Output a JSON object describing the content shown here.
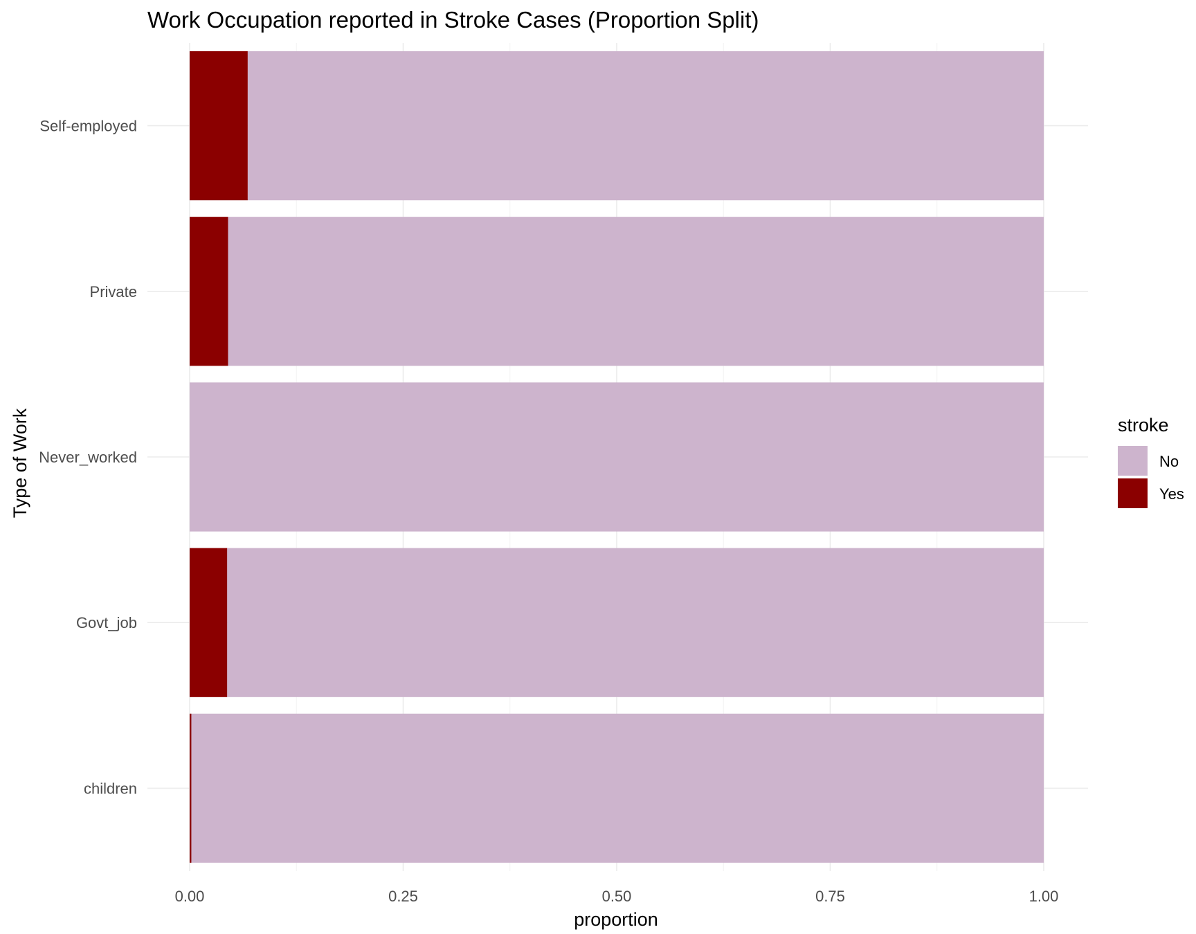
{
  "chart_data": {
    "type": "bar",
    "orientation": "horizontal",
    "stacking": "fill",
    "title": "Work Occupation reported in Stroke Cases (Proportion Split)",
    "xlabel": "proportion",
    "ylabel": "Type of Work",
    "xlim": [
      0,
      1
    ],
    "x_ticks": [
      0,
      0.25,
      0.5,
      0.75,
      1
    ],
    "x_tick_labels": [
      "0.00",
      "0.25",
      "0.50",
      "0.75",
      "1.00"
    ],
    "grid": true,
    "categories": [
      "Self-employed",
      "Private",
      "Never_worked",
      "Govt_job",
      "children"
    ],
    "series": [
      {
        "name": "Yes",
        "color": "#8B0000",
        "values": [
          0.068,
          0.045,
          0.0,
          0.044,
          0.002
        ]
      },
      {
        "name": "No",
        "color": "#CDB4CD",
        "values": [
          0.932,
          0.955,
          1.0,
          0.956,
          0.998
        ]
      }
    ],
    "legend": {
      "title": "stroke",
      "position": "right",
      "entries": [
        {
          "label": "No",
          "color": "#CDB4CD"
        },
        {
          "label": "Yes",
          "color": "#8B0000"
        }
      ]
    }
  }
}
